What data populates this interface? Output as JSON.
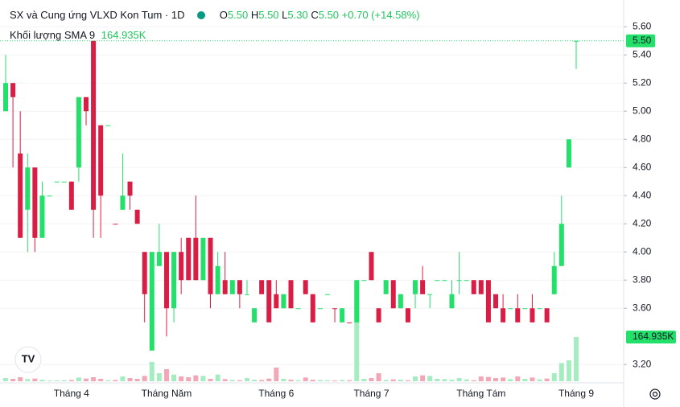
{
  "chart_data": {
    "type": "candlestick",
    "title": "SX và Cung ứng VLXD Kon Tum · 1D",
    "legend": {
      "o_label": "O",
      "o": "5.50",
      "h_label": "H",
      "h": "5.50",
      "l_label": "L",
      "l": "5.30",
      "c_label": "C",
      "c": "5.50",
      "change": "+0.70 (+14.58%)"
    },
    "volume_legend": {
      "label": "Khối lượng SMA 9",
      "value": "164.935K"
    },
    "categories": [
      null,
      null,
      null,
      null,
      null,
      null,
      null,
      null,
      null,
      "Tháng 4",
      null,
      null,
      null,
      null,
      null,
      null,
      null,
      null,
      null,
      null,
      null,
      null,
      "Tháng Năm",
      null,
      null,
      null,
      null,
      null,
      null,
      null,
      null,
      null,
      null,
      null,
      null,
      null,
      null,
      "Tháng 6",
      null,
      null,
      null,
      null,
      null,
      null,
      null,
      null,
      null,
      null,
      null,
      null,
      "Tháng 7",
      null,
      null,
      null,
      null,
      null,
      null,
      null,
      null,
      null,
      null,
      null,
      null,
      null,
      null,
      "Tháng Tám",
      null,
      null,
      null,
      null,
      null,
      null,
      null,
      null,
      null,
      null,
      null,
      null,
      "Tháng 9"
    ],
    "open": [
      5.0,
      5.2,
      4.7,
      4.3,
      4.6,
      4.1,
      4.4,
      4.5,
      4.5,
      4.5,
      4.6,
      5.1,
      5.5,
      4.9,
      4.9,
      4.2,
      4.3,
      4.5,
      4.3,
      4.0,
      3.3,
      3.9,
      4.0,
      3.6,
      4.0,
      4.1,
      4.1,
      3.8,
      4.1,
      3.7,
      3.8,
      3.7,
      3.8,
      3.7,
      3.5,
      3.8,
      3.8,
      3.7,
      3.6,
      3.8,
      3.6,
      3.8,
      3.7,
      3.6,
      3.7,
      3.6,
      3.5,
      3.5,
      3.5,
      3.8,
      4.0,
      3.6,
      3.7,
      3.8,
      3.6,
      3.6,
      3.7,
      3.8,
      3.7,
      3.8,
      3.8,
      3.6,
      3.8,
      3.8,
      3.8,
      3.8,
      3.8,
      3.7,
      3.6,
      3.6,
      3.6,
      3.6,
      3.6,
      3.6,
      3.6,
      3.7,
      3.9,
      4.6,
      5.5
    ],
    "high": [
      5.4,
      5.2,
      5.0,
      4.7,
      4.6,
      4.5,
      4.4,
      4.5,
      4.5,
      4.5,
      5.1,
      5.1,
      5.5,
      4.9,
      4.9,
      4.2,
      4.7,
      4.5,
      4.3,
      4.0,
      4.0,
      4.2,
      4.0,
      4.0,
      4.1,
      4.1,
      4.4,
      4.1,
      4.1,
      4.0,
      4.0,
      3.8,
      3.8,
      3.8,
      3.6,
      3.8,
      3.8,
      3.8,
      3.7,
      3.8,
      3.6,
      3.8,
      3.7,
      3.6,
      3.7,
      3.6,
      3.6,
      3.5,
      3.8,
      3.8,
      4.0,
      3.6,
      3.8,
      3.8,
      3.7,
      3.6,
      3.8,
      3.9,
      3.7,
      3.8,
      3.8,
      3.8,
      4.0,
      3.8,
      3.8,
      3.8,
      3.8,
      3.7,
      3.7,
      3.6,
      3.7,
      3.6,
      3.7,
      3.6,
      3.6,
      4.0,
      4.4,
      4.8,
      5.5
    ],
    "low": [
      5.0,
      4.6,
      4.1,
      4.0,
      4.0,
      4.1,
      4.4,
      4.5,
      4.5,
      4.3,
      4.5,
      4.9,
      4.1,
      4.1,
      4.9,
      4.2,
      4.3,
      4.3,
      4.2,
      3.5,
      3.3,
      3.9,
      3.4,
      3.5,
      3.7,
      3.8,
      3.8,
      3.8,
      3.6,
      3.7,
      3.7,
      3.7,
      3.6,
      3.7,
      3.5,
      3.7,
      3.5,
      3.6,
      3.6,
      3.6,
      3.6,
      3.7,
      3.5,
      3.6,
      3.7,
      3.5,
      3.5,
      3.5,
      3.5,
      3.8,
      3.8,
      3.5,
      3.7,
      3.6,
      3.6,
      3.5,
      3.6,
      3.7,
      3.6,
      3.8,
      3.8,
      3.6,
      3.7,
      3.8,
      3.7,
      3.7,
      3.5,
      3.6,
      3.5,
      3.6,
      3.5,
      3.6,
      3.5,
      3.6,
      3.5,
      3.7,
      3.9,
      4.6,
      5.3
    ],
    "close": [
      5.2,
      5.1,
      4.1,
      4.6,
      4.1,
      4.4,
      4.4,
      4.5,
      4.5,
      4.3,
      5.1,
      5.0,
      4.3,
      4.4,
      4.9,
      4.2,
      4.4,
      4.4,
      4.2,
      3.7,
      4.0,
      4.0,
      3.6,
      4.0,
      3.8,
      3.8,
      3.8,
      4.1,
      3.7,
      3.9,
      3.7,
      3.8,
      3.7,
      3.7,
      3.6,
      3.7,
      3.5,
      3.6,
      3.7,
      3.6,
      3.6,
      3.7,
      3.5,
      3.6,
      3.7,
      3.6,
      3.6,
      3.5,
      3.8,
      3.8,
      3.8,
      3.5,
      3.8,
      3.6,
      3.7,
      3.5,
      3.8,
      3.7,
      3.7,
      3.8,
      3.8,
      3.7,
      3.8,
      3.8,
      3.7,
      3.7,
      3.5,
      3.6,
      3.5,
      3.6,
      3.5,
      3.6,
      3.5,
      3.6,
      3.5,
      3.9,
      4.2,
      4.8,
      5.5
    ],
    "volume": [
      12000,
      9000,
      15000,
      8000,
      10000,
      6000,
      3000,
      3000,
      4000,
      5000,
      14000,
      10000,
      15000,
      9000,
      4000,
      5000,
      18000,
      12000,
      9000,
      20000,
      72000,
      30000,
      45000,
      25000,
      18000,
      15000,
      22000,
      20000,
      9000,
      25000,
      8000,
      5000,
      4000,
      12000,
      6000,
      5000,
      10000,
      51000,
      9000,
      6000,
      4000,
      14000,
      6000,
      5000,
      4000,
      3000,
      5000,
      4000,
      366000,
      9000,
      12000,
      30000,
      5000,
      7000,
      6000,
      4000,
      18000,
      22000,
      20000,
      9000,
      8000,
      6000,
      12000,
      7000,
      4000,
      18000,
      16000,
      12000,
      14000,
      8000,
      18000,
      9000,
      14000,
      7000,
      10000,
      30000,
      68000,
      78000,
      164935
    ],
    "ylim": [
      3.07,
      5.79
    ],
    "yticks": [
      {
        "value": 5.6,
        "label": "5.60"
      },
      {
        "value": 5.4,
        "label": "5.40"
      },
      {
        "value": 5.2,
        "label": "5.20"
      },
      {
        "value": 5.0,
        "label": "5.00"
      },
      {
        "value": 4.8,
        "label": "4.80"
      },
      {
        "value": 4.6,
        "label": "4.60"
      },
      {
        "value": 4.4,
        "label": "4.40"
      },
      {
        "value": 4.2,
        "label": "4.20"
      },
      {
        "value": 4.0,
        "label": "4.00"
      },
      {
        "value": 3.8,
        "label": "3.80"
      },
      {
        "value": 3.6,
        "label": "3.60"
      },
      {
        "value": 3.2,
        "label": "3.20"
      }
    ],
    "y2lim": [
      0,
      600000
    ],
    "up_color": "#22e06a",
    "down_color": "#d81e45",
    "up_volume_color": "#a5edc0",
    "down_volume_color": "#f2a7b6",
    "grid": true
  }
}
